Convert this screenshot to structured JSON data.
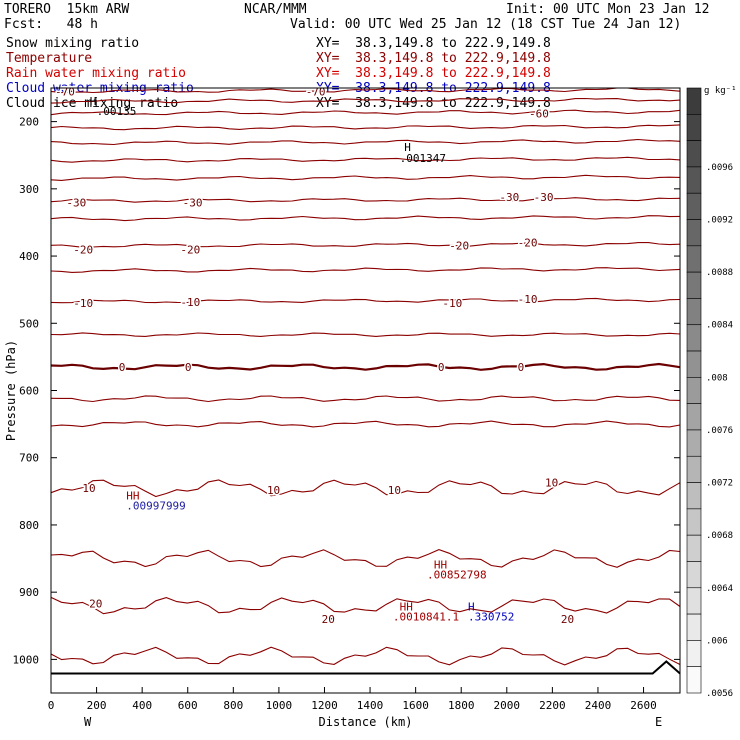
{
  "header": {
    "model": "TORERO  15km ARW",
    "center": "NCAR/MMM",
    "init": "Init: 00 UTC Mon 23 Jan 12",
    "fcst": "Fcst:   48 h",
    "valid": "Valid: 00 UTC Wed 25 Jan 12 (18 CST Tue 24 Jan 12)"
  },
  "fields": [
    {
      "name": "Snow mixing ratio",
      "xy": "XY=  38.3,149.8 to 222.9,149.8",
      "color": "#000000"
    },
    {
      "name": "Temperature",
      "xy": "XY=  38.3,149.8 to 222.9,149.8",
      "color": "#8b0000"
    },
    {
      "name": "Rain water mixing ratio",
      "xy": "XY=  38.3,149.8 to 222.9,149.8",
      "color": "#d40000"
    },
    {
      "name": "Cloud water mixing ratio",
      "xy": "XY=  38.3,149.8 to 222.9,149.8",
      "color": "#0000c0"
    },
    {
      "name": "Cloud ice mixing ratio",
      "xy": "XY=  38.3,149.8 to 222.9,149.8",
      "color": "#000000"
    }
  ],
  "chart_data": {
    "type": "line",
    "subtype": "vertical cross-section contour",
    "xlabel": "Distance (km)",
    "ylabel": "Pressure (hPa)",
    "x_ticks": [
      0,
      200,
      400,
      600,
      800,
      1000,
      1200,
      1400,
      1600,
      1800,
      2000,
      2200,
      2400,
      2600
    ],
    "xlim": [
      0,
      2760
    ],
    "y_ticks": [
      200,
      300,
      400,
      500,
      600,
      700,
      800,
      900,
      1000
    ],
    "ylim": [
      1050,
      150
    ],
    "x_end_labels": [
      "W",
      "E"
    ],
    "colorbar": {
      "unit": "g kg⁻¹",
      "ticks": [
        ".0096",
        ".0092",
        ".0088",
        ".0084",
        ".008",
        ".0076",
        ".0072",
        ".0068",
        ".0064",
        ".006",
        ".0056"
      ],
      "levels": [
        0.0098,
        0.0096,
        0.0094,
        0.0092,
        0.009,
        0.0088,
        0.0086,
        0.0084,
        0.0082,
        0.008,
        0.0078,
        0.0076,
        0.0074,
        0.0072,
        0.007,
        0.0068,
        0.0066,
        0.0064,
        0.0062,
        0.006,
        0.0058,
        0.0056,
        0.0054
      ]
    },
    "temperature_contours": [
      {
        "label": "-70",
        "pressure": 155,
        "color": "#8b0000"
      },
      {
        "label": "",
        "pressure": 170,
        "color": "#8b0000"
      },
      {
        "label": "-60",
        "pressure": 188,
        "color": "#8b0000"
      },
      {
        "label": "",
        "pressure": 210,
        "color": "#8b0000"
      },
      {
        "label": "",
        "pressure": 232,
        "color": "#8b0000"
      },
      {
        "label": "",
        "pressure": 258,
        "color": "#8b0000"
      },
      {
        "label": "",
        "pressure": 285,
        "color": "#8b0000"
      },
      {
        "label": "-30",
        "pressure": 318,
        "color": "#8b0000"
      },
      {
        "label": "",
        "pressure": 345,
        "color": "#8b0000"
      },
      {
        "label": "-20",
        "pressure": 385,
        "color": "#8b0000"
      },
      {
        "label": "",
        "pressure": 422,
        "color": "#8b0000"
      },
      {
        "label": "-10",
        "pressure": 468,
        "color": "#8b0000"
      },
      {
        "label": "",
        "pressure": 517,
        "color": "#8b0000"
      },
      {
        "label": "0",
        "pressure": 565,
        "color": "#6b0000"
      },
      {
        "label": "",
        "pressure": 612,
        "color": "#8b0000"
      },
      {
        "label": "",
        "pressure": 650,
        "color": "#8b0000"
      },
      {
        "label": "10",
        "pressure": 745,
        "color": "#8b0000"
      },
      {
        "label": "",
        "pressure": 850,
        "color": "#8b0000"
      },
      {
        "label": "20",
        "pressure": 920,
        "color": "#8b0000"
      },
      {
        "label": "",
        "pressure": 995,
        "color": "#8b0000"
      }
    ],
    "contour_labels": [
      {
        "text": "-70",
        "x": 0,
        "p": 155
      },
      {
        "text": "-70",
        "x": 1100,
        "p": 155
      },
      {
        "text": "-60",
        "x": 2080,
        "p": 188
      },
      {
        "text": "-30",
        "x": 50,
        "p": 320
      },
      {
        "text": "-30",
        "x": 560,
        "p": 320
      },
      {
        "text": "-30",
        "x": 1950,
        "p": 312
      },
      {
        "text": "-30",
        "x": 2100,
        "p": 312
      },
      {
        "text": "-20",
        "x": 80,
        "p": 390
      },
      {
        "text": "-20",
        "x": 550,
        "p": 390
      },
      {
        "text": "-20",
        "x": 1730,
        "p": 384
      },
      {
        "text": "-20",
        "x": 2030,
        "p": 380
      },
      {
        "text": "-10",
        "x": 80,
        "p": 470
      },
      {
        "text": "-10",
        "x": 550,
        "p": 468
      },
      {
        "text": "-10",
        "x": 1700,
        "p": 470
      },
      {
        "text": "-10",
        "x": 2030,
        "p": 464
      },
      {
        "text": "0",
        "x": 280,
        "p": 565
      },
      {
        "text": "0",
        "x": 570,
        "p": 565
      },
      {
        "text": "0",
        "x": 1680,
        "p": 565
      },
      {
        "text": "0",
        "x": 2030,
        "p": 565
      },
      {
        "text": "10",
        "x": 120,
        "p": 745
      },
      {
        "text": "10",
        "x": 930,
        "p": 748
      },
      {
        "text": "10",
        "x": 1460,
        "p": 748
      },
      {
        "text": "10",
        "x": 2150,
        "p": 737
      },
      {
        "text": "20",
        "x": 150,
        "p": 917
      },
      {
        "text": "20",
        "x": 1170,
        "p": 940
      },
      {
        "text": "20",
        "x": 2220,
        "p": 940
      }
    ],
    "extrema_marks": [
      {
        "text": "H",
        "x": 170,
        "p": 175,
        "color": "#000000"
      },
      {
        "text": ".00135",
        "x": 200,
        "p": 190,
        "color": "#000000"
      },
      {
        "text": "H",
        "x": 1550,
        "p": 244,
        "color": "#000000"
      },
      {
        "text": ".001347",
        "x": 1530,
        "p": 260,
        "color": "#000000"
      },
      {
        "text": "HH",
        "x": 330,
        "p": 762,
        "color": "#a00000"
      },
      {
        "text": ".00997999",
        "x": 330,
        "p": 777,
        "color": "#2020a0"
      },
      {
        "text": "HH",
        "x": 1680,
        "p": 865,
        "color": "#a00000"
      },
      {
        "text": ".00852798",
        "x": 1650,
        "p": 880,
        "color": "#a00000"
      },
      {
        "text": "HH",
        "x": 1530,
        "p": 927,
        "color": "#a00000"
      },
      {
        "text": ".0010841.1",
        "x": 1500,
        "p": 942,
        "color": "#a00000"
      },
      {
        "text": "H",
        "x": 1830,
        "p": 927,
        "color": "#0000c0"
      },
      {
        "text": ".330752",
        "x": 1830,
        "p": 942,
        "color": "#0000c0"
      }
    ],
    "terrain_height_hpa": 1012
  }
}
